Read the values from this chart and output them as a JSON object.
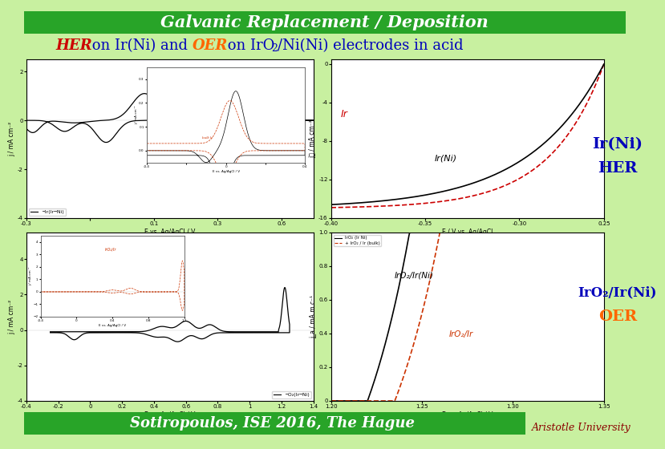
{
  "title": "Galvanic Replacement / Deposition",
  "footer": "Sotiropoulos, ISE 2016, The Hague",
  "footer_right": "Aristotle University",
  "bg_color": "#c8f0a0",
  "green_bar_color": "#28a428",
  "white_text": "#ffffff",
  "her_color": "#cc0000",
  "oer_color": "#ff6600",
  "blue_text": "#0000bb",
  "label_her": "HER",
  "label_oer": "OER",
  "label_irni": "Ir(Ni)",
  "label_iro2irni": "IrO₂/Ir(Ni)",
  "panel_border": "#999999"
}
